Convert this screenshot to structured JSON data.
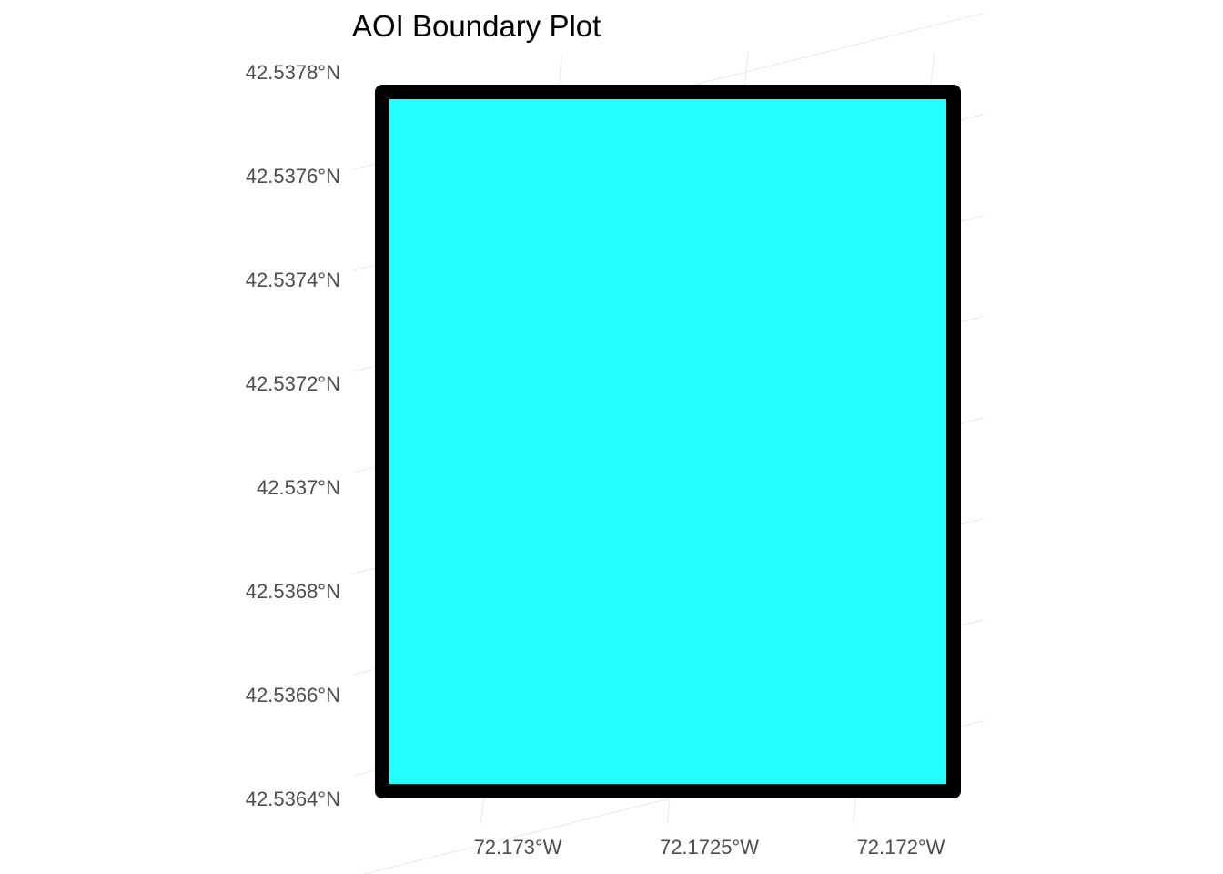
{
  "chart_data": {
    "type": "map",
    "title": "AOI Boundary Plot",
    "xlabel": "",
    "ylabel": "",
    "lon_ticks": [
      -72.173,
      -72.1725,
      -72.172
    ],
    "lon_tick_labels": [
      "72.173°W",
      "72.1725°W",
      "72.172°W"
    ],
    "lat_ticks": [
      42.5364,
      42.5366,
      42.5368,
      42.537,
      42.5372,
      42.5374,
      42.5376,
      42.5378
    ],
    "lat_tick_labels": [
      "42.5364°N",
      "42.5366°N",
      "42.5368°N",
      "42.537°N",
      "42.5372°N",
      "42.5374°N",
      "42.5376°N",
      "42.5378°N"
    ],
    "polygon": {
      "lon_min": -72.17336,
      "lon_max": -72.17184,
      "lat_min": 42.53641,
      "lat_max": 42.53775
    },
    "grid": true,
    "legend": "none"
  },
  "colors": {
    "fill": "#22ffff",
    "outline": "#000000",
    "grid": "#ebebeb",
    "tick_text": "#4d4d4d",
    "title_text": "#000000"
  }
}
